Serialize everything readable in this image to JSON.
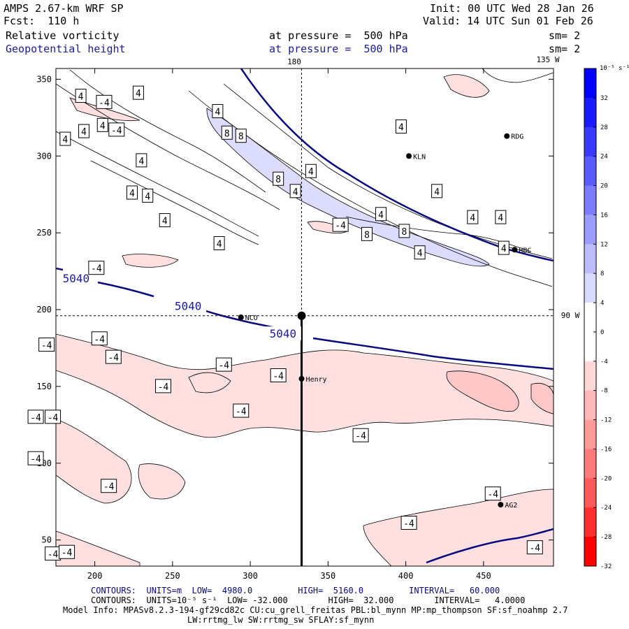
{
  "header": {
    "model": "AMPS 2.67-km WRF SP",
    "forecast": "Fcst:  110 h",
    "init": "Init: 00 UTC Wed 28 Jan 26",
    "valid": "Valid: 14 UTC Sun 01 Feb 26",
    "field1_name": "Relative vorticity",
    "field1_level": "at pressure =  500 hPa",
    "field1_sm": "sm= 2",
    "field2_name": "Geopotential height",
    "field2_level": "at pressure =  500 hPa",
    "field2_sm": "sm= 2",
    "top_lon_label": "180",
    "top_right_label": "135 W",
    "right_lat_label": "90 W"
  },
  "colorbar": {
    "unit_label": "10⁻⁵ s⁻¹",
    "ticks": [
      32,
      28,
      24,
      20,
      16,
      12,
      8,
      4,
      0,
      -4,
      -8,
      -12,
      -16,
      -20,
      -24,
      -28,
      -32
    ],
    "colors": [
      "#0000ff",
      "#1a1aff",
      "#3a3aff",
      "#5a5aff",
      "#7c7cff",
      "#9d9dff",
      "#bcbcff",
      "#dadaff",
      "#ffffff",
      "#ffffff",
      "#ffd8d8",
      "#ffb8b8",
      "#ff9a9a",
      "#ff7a7a",
      "#ff5a5a",
      "#ff3030",
      "#ff0000"
    ]
  },
  "chart_data": {
    "type": "contour",
    "title": "AMPS 2.67-km WRF SP 500 hPa relative vorticity and geopotential height",
    "x_ticks": [
      200,
      250,
      300,
      350,
      400,
      450
    ],
    "y_ticks": [
      50,
      100,
      150,
      200,
      250,
      300,
      350
    ],
    "xlim": [
      175,
      495
    ],
    "ylim": [
      33,
      357
    ],
    "crosshair": {
      "x": 333,
      "y": 196
    },
    "stations": [
      {
        "name": "RDG",
        "x": 465,
        "y": 313
      },
      {
        "name": "KLN",
        "x": 402,
        "y": 300
      },
      {
        "name": "HBC",
        "x": 470,
        "y": 239
      },
      {
        "name": "NCO",
        "x": 294,
        "y": 195
      },
      {
        "name": "Henry",
        "x": 333,
        "y": 155
      },
      {
        "name": "AG2",
        "x": 461,
        "y": 73
      }
    ],
    "height_labels": [
      {
        "text": "5040",
        "x": 188,
        "y": 220
      },
      {
        "text": "5040",
        "x": 260,
        "y": 202
      },
      {
        "text": "5040",
        "x": 321,
        "y": 184
      }
    ],
    "vorticity_labels": [
      {
        "text": "4",
        "x": 191,
        "y": 339
      },
      {
        "text": "-4",
        "x": 206,
        "y": 335
      },
      {
        "text": "4",
        "x": 228,
        "y": 341
      },
      {
        "text": "4",
        "x": 205,
        "y": 320
      },
      {
        "text": "4",
        "x": 193,
        "y": 316
      },
      {
        "text": "-4",
        "x": 214,
        "y": 317
      },
      {
        "text": "4",
        "x": 181,
        "y": 311
      },
      {
        "text": "4",
        "x": 279,
        "y": 329
      },
      {
        "text": "8",
        "x": 285,
        "y": 315
      },
      {
        "text": "8",
        "x": 294,
        "y": 313
      },
      {
        "text": "4",
        "x": 230,
        "y": 297
      },
      {
        "text": "4",
        "x": 224,
        "y": 276
      },
      {
        "text": "4",
        "x": 234,
        "y": 274
      },
      {
        "text": "4",
        "x": 245,
        "y": 258
      },
      {
        "text": "4",
        "x": 280,
        "y": 243
      },
      {
        "text": "8",
        "x": 318,
        "y": 285
      },
      {
        "text": "4",
        "x": 329,
        "y": 277
      },
      {
        "text": "4",
        "x": 339,
        "y": 290
      },
      {
        "text": "4",
        "x": 397,
        "y": 319
      },
      {
        "text": "4",
        "x": 420,
        "y": 277
      },
      {
        "text": "4",
        "x": 443,
        "y": 260
      },
      {
        "text": "4",
        "x": 461,
        "y": 260
      },
      {
        "text": "-4",
        "x": 358,
        "y": 255
      },
      {
        "text": "4",
        "x": 384,
        "y": 262
      },
      {
        "text": "8",
        "x": 375,
        "y": 249
      },
      {
        "text": "8",
        "x": 399,
        "y": 251
      },
      {
        "text": "4",
        "x": 409,
        "y": 237
      },
      {
        "text": "4",
        "x": 463,
        "y": 240
      },
      {
        "text": "-4",
        "x": 201,
        "y": 227
      },
      {
        "text": "-4",
        "x": 203,
        "y": 181
      },
      {
        "text": "-4",
        "x": 169,
        "y": 177
      },
      {
        "text": "-4",
        "x": 212,
        "y": 169
      },
      {
        "text": "-4",
        "x": 283,
        "y": 164
      },
      {
        "text": "-4",
        "x": 318,
        "y": 157
      },
      {
        "text": "-4",
        "x": 244,
        "y": 150
      },
      {
        "text": "-4",
        "x": 294,
        "y": 134
      },
      {
        "text": "-4",
        "x": 162,
        "y": 130
      },
      {
        "text": "-4",
        "x": 173,
        "y": 130
      },
      {
        "text": "-4",
        "x": 371,
        "y": 118
      },
      {
        "text": "-4",
        "x": 162,
        "y": 103
      },
      {
        "text": "-4",
        "x": 209,
        "y": 85
      },
      {
        "text": "-4",
        "x": 456,
        "y": 80
      },
      {
        "text": "-4",
        "x": 402,
        "y": 61
      },
      {
        "text": "-4",
        "x": 173,
        "y": 41
      },
      {
        "text": "-4",
        "x": 182,
        "y": 42
      },
      {
        "text": "-4",
        "x": 483,
        "y": 45
      }
    ]
  },
  "footer": {
    "contours1": "CONTOURS:  UNITS=m  LOW=  4980.0         HIGH=  5160.0         INTERVAL=   60.000",
    "contours2": "CONTOURS:  UNITS=10⁻⁵ s⁻¹  LOW= -32.000        HIGH=  32.000        INTERVAL=   4.0000",
    "model_info": "Model Info: MPASv8.2.3-194-gf29cd82c CU:cu_grell_freitas PBL:bl_mynn MP:mp_thompson SF:sf_noahmp 2.7",
    "model_info2": "LW:rrtmg_lw SW:rrtmg_sw SFLAY:sf_mynn"
  }
}
